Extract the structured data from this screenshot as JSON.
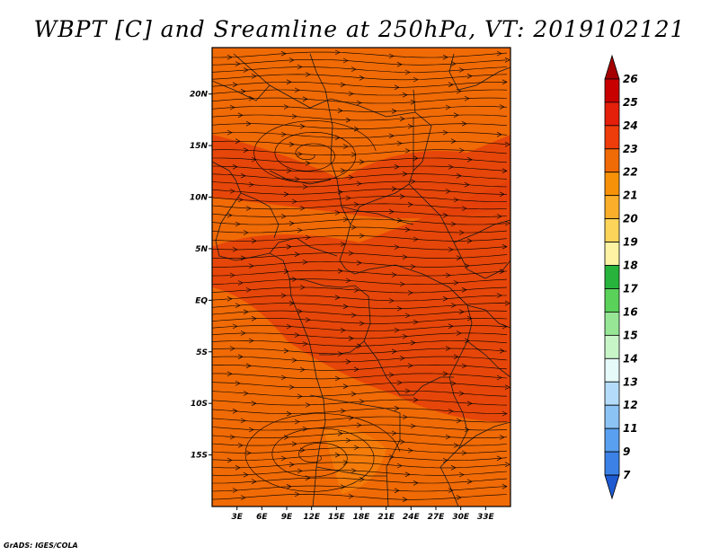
{
  "title": "WBPT [C] and Sreamline at 250hPa, VT: 2019102121",
  "credit": "GrADS: IGES/COLA",
  "map": {
    "lon_range": [
      0,
      36
    ],
    "lat_range": [
      -20,
      24.5
    ],
    "lon_ticks": [
      "3E",
      "6E",
      "9E",
      "12E",
      "15E",
      "18E",
      "21E",
      "24E",
      "27E",
      "30E",
      "33E"
    ],
    "lon_tick_values": [
      3,
      6,
      9,
      12,
      15,
      18,
      21,
      24,
      27,
      30,
      33
    ],
    "lat_ticks": [
      "20N",
      "15N",
      "10N",
      "5N",
      "EQ",
      "5S",
      "10S",
      "15S"
    ],
    "lat_tick_values": [
      20,
      15,
      10,
      5,
      0,
      -5,
      -10,
      -15
    ],
    "field_color": "#f06a06",
    "field_color_dark": "#e4400a",
    "field_color_light": "#f57f0c"
  },
  "colorbar": {
    "labels": [
      "26",
      "25",
      "24",
      "23",
      "22",
      "21",
      "20",
      "19",
      "18",
      "17",
      "16",
      "15",
      "14",
      "13",
      "12",
      "11",
      "9",
      "7"
    ],
    "colors": [
      "#a50000",
      "#c80000",
      "#e41f0a",
      "#ee3c0a",
      "#f06a06",
      "#f79208",
      "#fbae2a",
      "#fdd45a",
      "#fdf3a2",
      "#28b43c",
      "#5ad25a",
      "#96e696",
      "#c8f5c8",
      "#e6fafa",
      "#b4dcfa",
      "#8cc3f5",
      "#5aa0f0",
      "#3c82e6",
      "#1e5ad2"
    ]
  }
}
